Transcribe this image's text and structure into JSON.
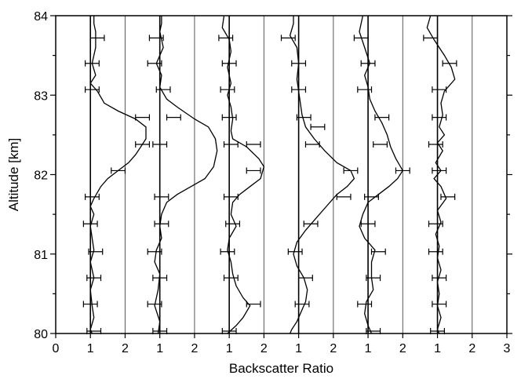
{
  "chart_data": {
    "type": "line",
    "title": "",
    "xlabel": "Backscatter Ratio",
    "ylabel": "Altitude [km]",
    "ylim": [
      80,
      84
    ],
    "y_ticks": [
      "80",
      "81",
      "82",
      "83",
      "84"
    ],
    "x_ticks": [
      "0",
      "1",
      "2",
      "1",
      "2",
      "1",
      "2",
      "1",
      "2",
      "1",
      "2",
      "1",
      "2",
      "3"
    ],
    "profile_offset": 1,
    "grid": "vertical lines at each tick",
    "error_bar_halfwidth": 0.2,
    "series": [
      {
        "points": [
          [
            1.1,
            84.0
          ],
          [
            1.1,
            83.9
          ],
          [
            1.15,
            83.8
          ],
          [
            1.15,
            83.6
          ],
          [
            1.05,
            83.4
          ],
          [
            1.15,
            83.25
          ],
          [
            1.0,
            83.15
          ],
          [
            1.2,
            83.05
          ],
          [
            1.4,
            82.9
          ],
          [
            1.8,
            82.8
          ],
          [
            2.3,
            82.7
          ],
          [
            2.6,
            82.6
          ],
          [
            2.6,
            82.45
          ],
          [
            2.45,
            82.35
          ],
          [
            2.3,
            82.25
          ],
          [
            2.1,
            82.15
          ],
          [
            1.8,
            82.05
          ],
          [
            1.5,
            81.95
          ],
          [
            1.3,
            81.85
          ],
          [
            1.1,
            81.7
          ],
          [
            1.0,
            81.6
          ],
          [
            1.1,
            81.5
          ],
          [
            1.0,
            81.35
          ],
          [
            1.05,
            81.2
          ],
          [
            1.1,
            81.05
          ],
          [
            1.0,
            80.9
          ],
          [
            1.1,
            80.7
          ],
          [
            1.0,
            80.55
          ],
          [
            1.05,
            80.35
          ],
          [
            1.1,
            80.2
          ],
          [
            1.0,
            80.05
          ],
          [
            1.05,
            80.0
          ]
        ],
        "error_points": [
          [
            1.2,
            83.72
          ],
          [
            1.05,
            83.4
          ],
          [
            1.05,
            83.07
          ],
          [
            2.5,
            82.72
          ],
          [
            2.5,
            82.38
          ],
          [
            1.8,
            82.05
          ],
          [
            1.05,
            81.72
          ],
          [
            1.0,
            81.38
          ],
          [
            1.15,
            81.03
          ],
          [
            1.1,
            80.7
          ],
          [
            1.0,
            80.37
          ],
          [
            1.1,
            80.03
          ]
        ]
      },
      {
        "points": [
          [
            1.05,
            84.0
          ],
          [
            1.05,
            83.9
          ],
          [
            1.0,
            83.8
          ],
          [
            1.1,
            83.6
          ],
          [
            0.9,
            83.4
          ],
          [
            1.05,
            83.25
          ],
          [
            1.0,
            83.1
          ],
          [
            1.2,
            82.95
          ],
          [
            1.5,
            82.85
          ],
          [
            2.0,
            82.7
          ],
          [
            2.4,
            82.6
          ],
          [
            2.6,
            82.45
          ],
          [
            2.65,
            82.3
          ],
          [
            2.6,
            82.2
          ],
          [
            2.55,
            82.1
          ],
          [
            2.3,
            81.95
          ],
          [
            1.9,
            81.85
          ],
          [
            1.5,
            81.75
          ],
          [
            1.2,
            81.65
          ],
          [
            1.05,
            81.5
          ],
          [
            1.0,
            81.35
          ],
          [
            1.05,
            81.2
          ],
          [
            0.9,
            81.05
          ],
          [
            0.85,
            80.9
          ],
          [
            1.0,
            80.75
          ],
          [
            0.95,
            80.55
          ],
          [
            0.85,
            80.35
          ],
          [
            1.0,
            80.15
          ],
          [
            0.95,
            80.0
          ]
        ],
        "error_points": [
          [
            0.9,
            83.72
          ],
          [
            0.85,
            83.4
          ],
          [
            1.1,
            83.07
          ],
          [
            1.4,
            82.72
          ],
          [
            1.0,
            82.38
          ],
          [
            1.05,
            81.72
          ],
          [
            1.05,
            81.38
          ],
          [
            0.85,
            81.03
          ],
          [
            1.0,
            80.7
          ],
          [
            0.85,
            80.37
          ],
          [
            1.0,
            80.03
          ]
        ]
      },
      {
        "points": [
          [
            0.85,
            84.0
          ],
          [
            0.8,
            83.85
          ],
          [
            1.0,
            83.7
          ],
          [
            1.05,
            83.55
          ],
          [
            0.95,
            83.35
          ],
          [
            1.05,
            83.15
          ],
          [
            0.95,
            83.0
          ],
          [
            1.05,
            82.85
          ],
          [
            1.1,
            82.7
          ],
          [
            1.05,
            82.55
          ],
          [
            1.1,
            82.45
          ],
          [
            1.5,
            82.35
          ],
          [
            1.85,
            82.2
          ],
          [
            2.0,
            82.1
          ],
          [
            1.9,
            81.95
          ],
          [
            1.6,
            81.85
          ],
          [
            1.3,
            81.75
          ],
          [
            1.1,
            81.65
          ],
          [
            1.05,
            81.5
          ],
          [
            1.2,
            81.35
          ],
          [
            1.0,
            81.2
          ],
          [
            0.95,
            81.05
          ],
          [
            1.05,
            80.9
          ],
          [
            1.1,
            80.75
          ],
          [
            1.2,
            80.6
          ],
          [
            1.4,
            80.45
          ],
          [
            1.6,
            80.35
          ],
          [
            1.4,
            80.2
          ],
          [
            1.2,
            80.1
          ],
          [
            0.95,
            80.0
          ]
        ],
        "error_points": [
          [
            0.9,
            83.72
          ],
          [
            1.0,
            83.4
          ],
          [
            0.95,
            83.07
          ],
          [
            1.0,
            82.72
          ],
          [
            1.05,
            82.38
          ],
          [
            1.7,
            82.38
          ],
          [
            1.7,
            82.05
          ],
          [
            1.05,
            81.72
          ],
          [
            1.1,
            81.38
          ],
          [
            0.95,
            81.03
          ],
          [
            1.05,
            80.7
          ],
          [
            1.7,
            80.37
          ],
          [
            1.0,
            80.03
          ]
        ]
      },
      {
        "points": [
          [
            0.85,
            84.0
          ],
          [
            0.85,
            83.9
          ],
          [
            0.75,
            83.75
          ],
          [
            0.95,
            83.6
          ],
          [
            1.0,
            83.4
          ],
          [
            0.95,
            83.2
          ],
          [
            1.0,
            83.05
          ],
          [
            1.05,
            82.9
          ],
          [
            1.1,
            82.75
          ],
          [
            1.2,
            82.6
          ],
          [
            1.45,
            82.45
          ],
          [
            1.75,
            82.3
          ],
          [
            2.1,
            82.15
          ],
          [
            2.5,
            82.05
          ],
          [
            2.6,
            81.95
          ],
          [
            2.4,
            81.85
          ],
          [
            2.1,
            81.75
          ],
          [
            1.8,
            81.6
          ],
          [
            1.5,
            81.45
          ],
          [
            1.2,
            81.3
          ],
          [
            0.95,
            81.15
          ],
          [
            0.85,
            81.0
          ],
          [
            0.95,
            80.85
          ],
          [
            1.15,
            80.7
          ],
          [
            1.25,
            80.55
          ],
          [
            1.2,
            80.4
          ],
          [
            1.1,
            80.3
          ],
          [
            0.95,
            80.15
          ],
          [
            0.8,
            80.05
          ],
          [
            0.75,
            80.0
          ]
        ],
        "error_points": [
          [
            0.7,
            83.72
          ],
          [
            1.0,
            83.4
          ],
          [
            1.0,
            83.07
          ],
          [
            1.15,
            82.72
          ],
          [
            1.55,
            82.6
          ],
          [
            1.4,
            82.38
          ],
          [
            2.5,
            82.05
          ],
          [
            2.3,
            81.72
          ],
          [
            1.35,
            81.38
          ],
          [
            0.9,
            81.03
          ],
          [
            1.2,
            80.7
          ],
          [
            1.1,
            80.37
          ]
        ]
      },
      {
        "points": [
          [
            0.85,
            84.0
          ],
          [
            0.8,
            83.9
          ],
          [
            0.75,
            83.8
          ],
          [
            0.9,
            83.6
          ],
          [
            1.05,
            83.4
          ],
          [
            0.9,
            83.25
          ],
          [
            1.0,
            83.1
          ],
          [
            1.05,
            82.95
          ],
          [
            1.2,
            82.8
          ],
          [
            1.4,
            82.65
          ],
          [
            1.55,
            82.5
          ],
          [
            1.65,
            82.35
          ],
          [
            1.8,
            82.2
          ],
          [
            2.0,
            82.05
          ],
          [
            1.85,
            81.95
          ],
          [
            1.6,
            81.85
          ],
          [
            1.3,
            81.75
          ],
          [
            1.0,
            81.65
          ],
          [
            0.85,
            81.5
          ],
          [
            0.75,
            81.35
          ],
          [
            0.9,
            81.2
          ],
          [
            1.2,
            81.05
          ],
          [
            1.1,
            80.9
          ],
          [
            1.1,
            80.7
          ],
          [
            1.15,
            80.55
          ],
          [
            0.95,
            80.4
          ],
          [
            0.9,
            80.25
          ],
          [
            1.0,
            80.1
          ],
          [
            1.1,
            80.0
          ]
        ],
        "error_points": [
          [
            0.8,
            83.72
          ],
          [
            1.0,
            83.4
          ],
          [
            0.9,
            83.07
          ],
          [
            1.4,
            82.72
          ],
          [
            1.35,
            82.38
          ],
          [
            2.0,
            82.05
          ],
          [
            1.1,
            81.72
          ],
          [
            1.0,
            81.38
          ],
          [
            1.3,
            81.03
          ],
          [
            1.15,
            80.7
          ],
          [
            0.9,
            80.37
          ],
          [
            1.15,
            80.03
          ]
        ]
      },
      {
        "points": [
          [
            0.8,
            84.0
          ],
          [
            0.7,
            83.85
          ],
          [
            0.9,
            83.7
          ],
          [
            1.2,
            83.5
          ],
          [
            1.4,
            83.35
          ],
          [
            1.5,
            83.2
          ],
          [
            1.2,
            83.05
          ],
          [
            1.1,
            82.9
          ],
          [
            1.15,
            82.75
          ],
          [
            1.05,
            82.6
          ],
          [
            1.2,
            82.5
          ],
          [
            1.0,
            82.4
          ],
          [
            1.15,
            82.3
          ],
          [
            0.95,
            82.15
          ],
          [
            1.1,
            82.05
          ],
          [
            0.9,
            81.95
          ],
          [
            1.1,
            81.85
          ],
          [
            1.25,
            81.7
          ],
          [
            1.0,
            81.55
          ],
          [
            1.1,
            81.4
          ],
          [
            0.95,
            81.25
          ],
          [
            1.05,
            81.1
          ],
          [
            1.0,
            80.95
          ],
          [
            1.1,
            80.8
          ],
          [
            1.0,
            80.65
          ],
          [
            1.05,
            80.5
          ],
          [
            1.0,
            80.35
          ],
          [
            1.1,
            80.2
          ],
          [
            1.0,
            80.05
          ],
          [
            1.05,
            80.0
          ]
        ],
        "error_points": [
          [
            0.8,
            83.72
          ],
          [
            1.35,
            83.4
          ],
          [
            1.05,
            83.07
          ],
          [
            1.05,
            82.72
          ],
          [
            0.95,
            82.38
          ],
          [
            1.05,
            82.05
          ],
          [
            1.3,
            81.72
          ],
          [
            0.95,
            81.38
          ],
          [
            0.95,
            81.03
          ],
          [
            1.05,
            80.7
          ],
          [
            1.05,
            80.37
          ],
          [
            1.0,
            80.03
          ]
        ]
      }
    ]
  },
  "colors": {
    "line": "#000000",
    "grid": "#555555",
    "axis": "#000000"
  }
}
